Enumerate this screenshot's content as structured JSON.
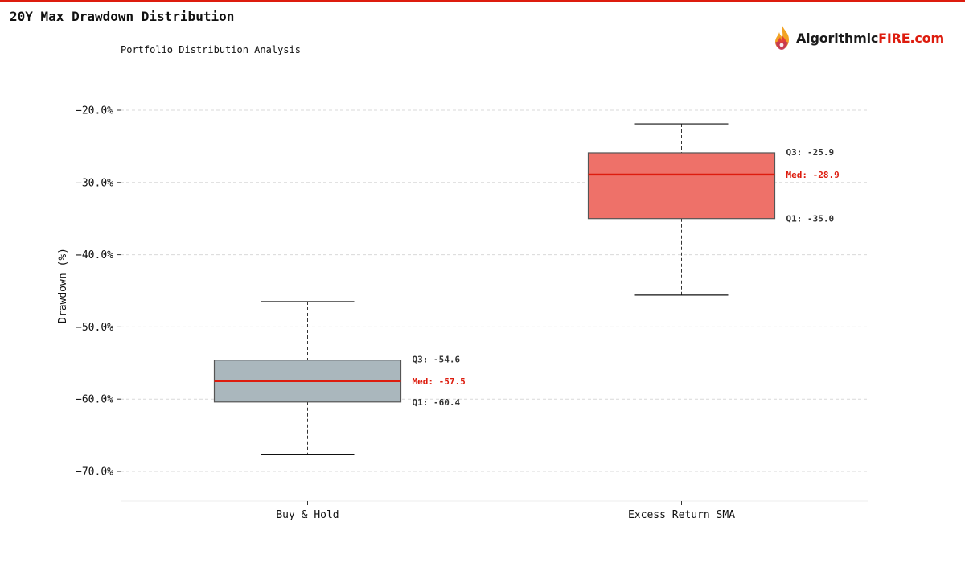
{
  "page": {
    "title": "20Y Max Drawdown Distribution",
    "subtitle": "Portfolio Distribution Analysis",
    "accent_color": "#dd1c0e"
  },
  "logo": {
    "icon": "flame-icon",
    "text_dark": "Algorithmic",
    "text_accent": "FIRE.com"
  },
  "chart_data": {
    "type": "box",
    "title": "20Y Max Drawdown Distribution",
    "subtitle": "Portfolio Distribution Analysis",
    "ylabel": "Drawdown (%)",
    "xlabel": "",
    "ylim": [
      -74,
      -15
    ],
    "yticks": [
      -20,
      -30,
      -40,
      -50,
      -60,
      -70
    ],
    "ytick_labels": [
      "−20.0%",
      "−30.0%",
      "−40.0%",
      "−50.0%",
      "−60.0%",
      "−70.0%"
    ],
    "grid": true,
    "categories": [
      "Buy & Hold",
      "Excess Return SMA"
    ],
    "series": [
      {
        "category": "Buy & Hold",
        "whisker_low": -67.7,
        "q1": -60.4,
        "median": -57.5,
        "q3": -54.6,
        "whisker_high": -46.5,
        "color": "#aab7bd",
        "q3_label": "Q3: -54.6",
        "median_label": "Med: -57.5",
        "q1_label": "Q1: -60.4"
      },
      {
        "category": "Excess Return SMA",
        "whisker_low": -45.6,
        "q1": -35.0,
        "median": -28.9,
        "q3": -25.9,
        "whisker_high": -21.9,
        "color": "#ee7169",
        "q3_label": "Q3: -25.9",
        "median_label": "Med: -28.9",
        "q1_label": "Q1: -35.0"
      }
    ],
    "median_color": "#dd1c0e"
  }
}
